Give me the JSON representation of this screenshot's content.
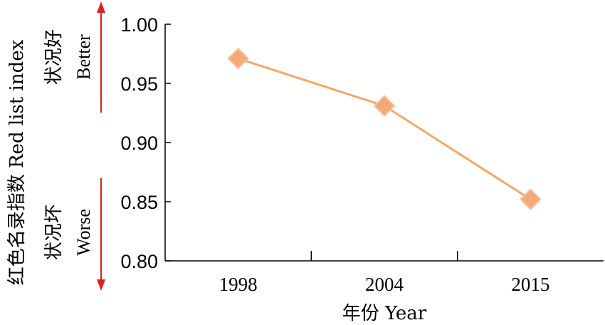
{
  "chart_data": {
    "type": "line",
    "categories": [
      "1998",
      "2004",
      "2015"
    ],
    "values": [
      0.971,
      0.931,
      0.852
    ],
    "xlabel": "年份 Year",
    "ylabel": "红色名录指数 Red list index",
    "ylim": [
      0.8,
      1.0
    ],
    "yticks": [
      "0.80",
      "0.85",
      "0.90",
      "0.95",
      "1.00"
    ],
    "annotations": {
      "better_cn": "状况好",
      "better_en": "Better",
      "worse_cn": "状况坏",
      "worse_en": "Worse"
    },
    "colors": {
      "line": "#f0a868",
      "marker": "#f5a878",
      "arrow": "#e02020",
      "axis": "#000000"
    },
    "grid": false
  }
}
